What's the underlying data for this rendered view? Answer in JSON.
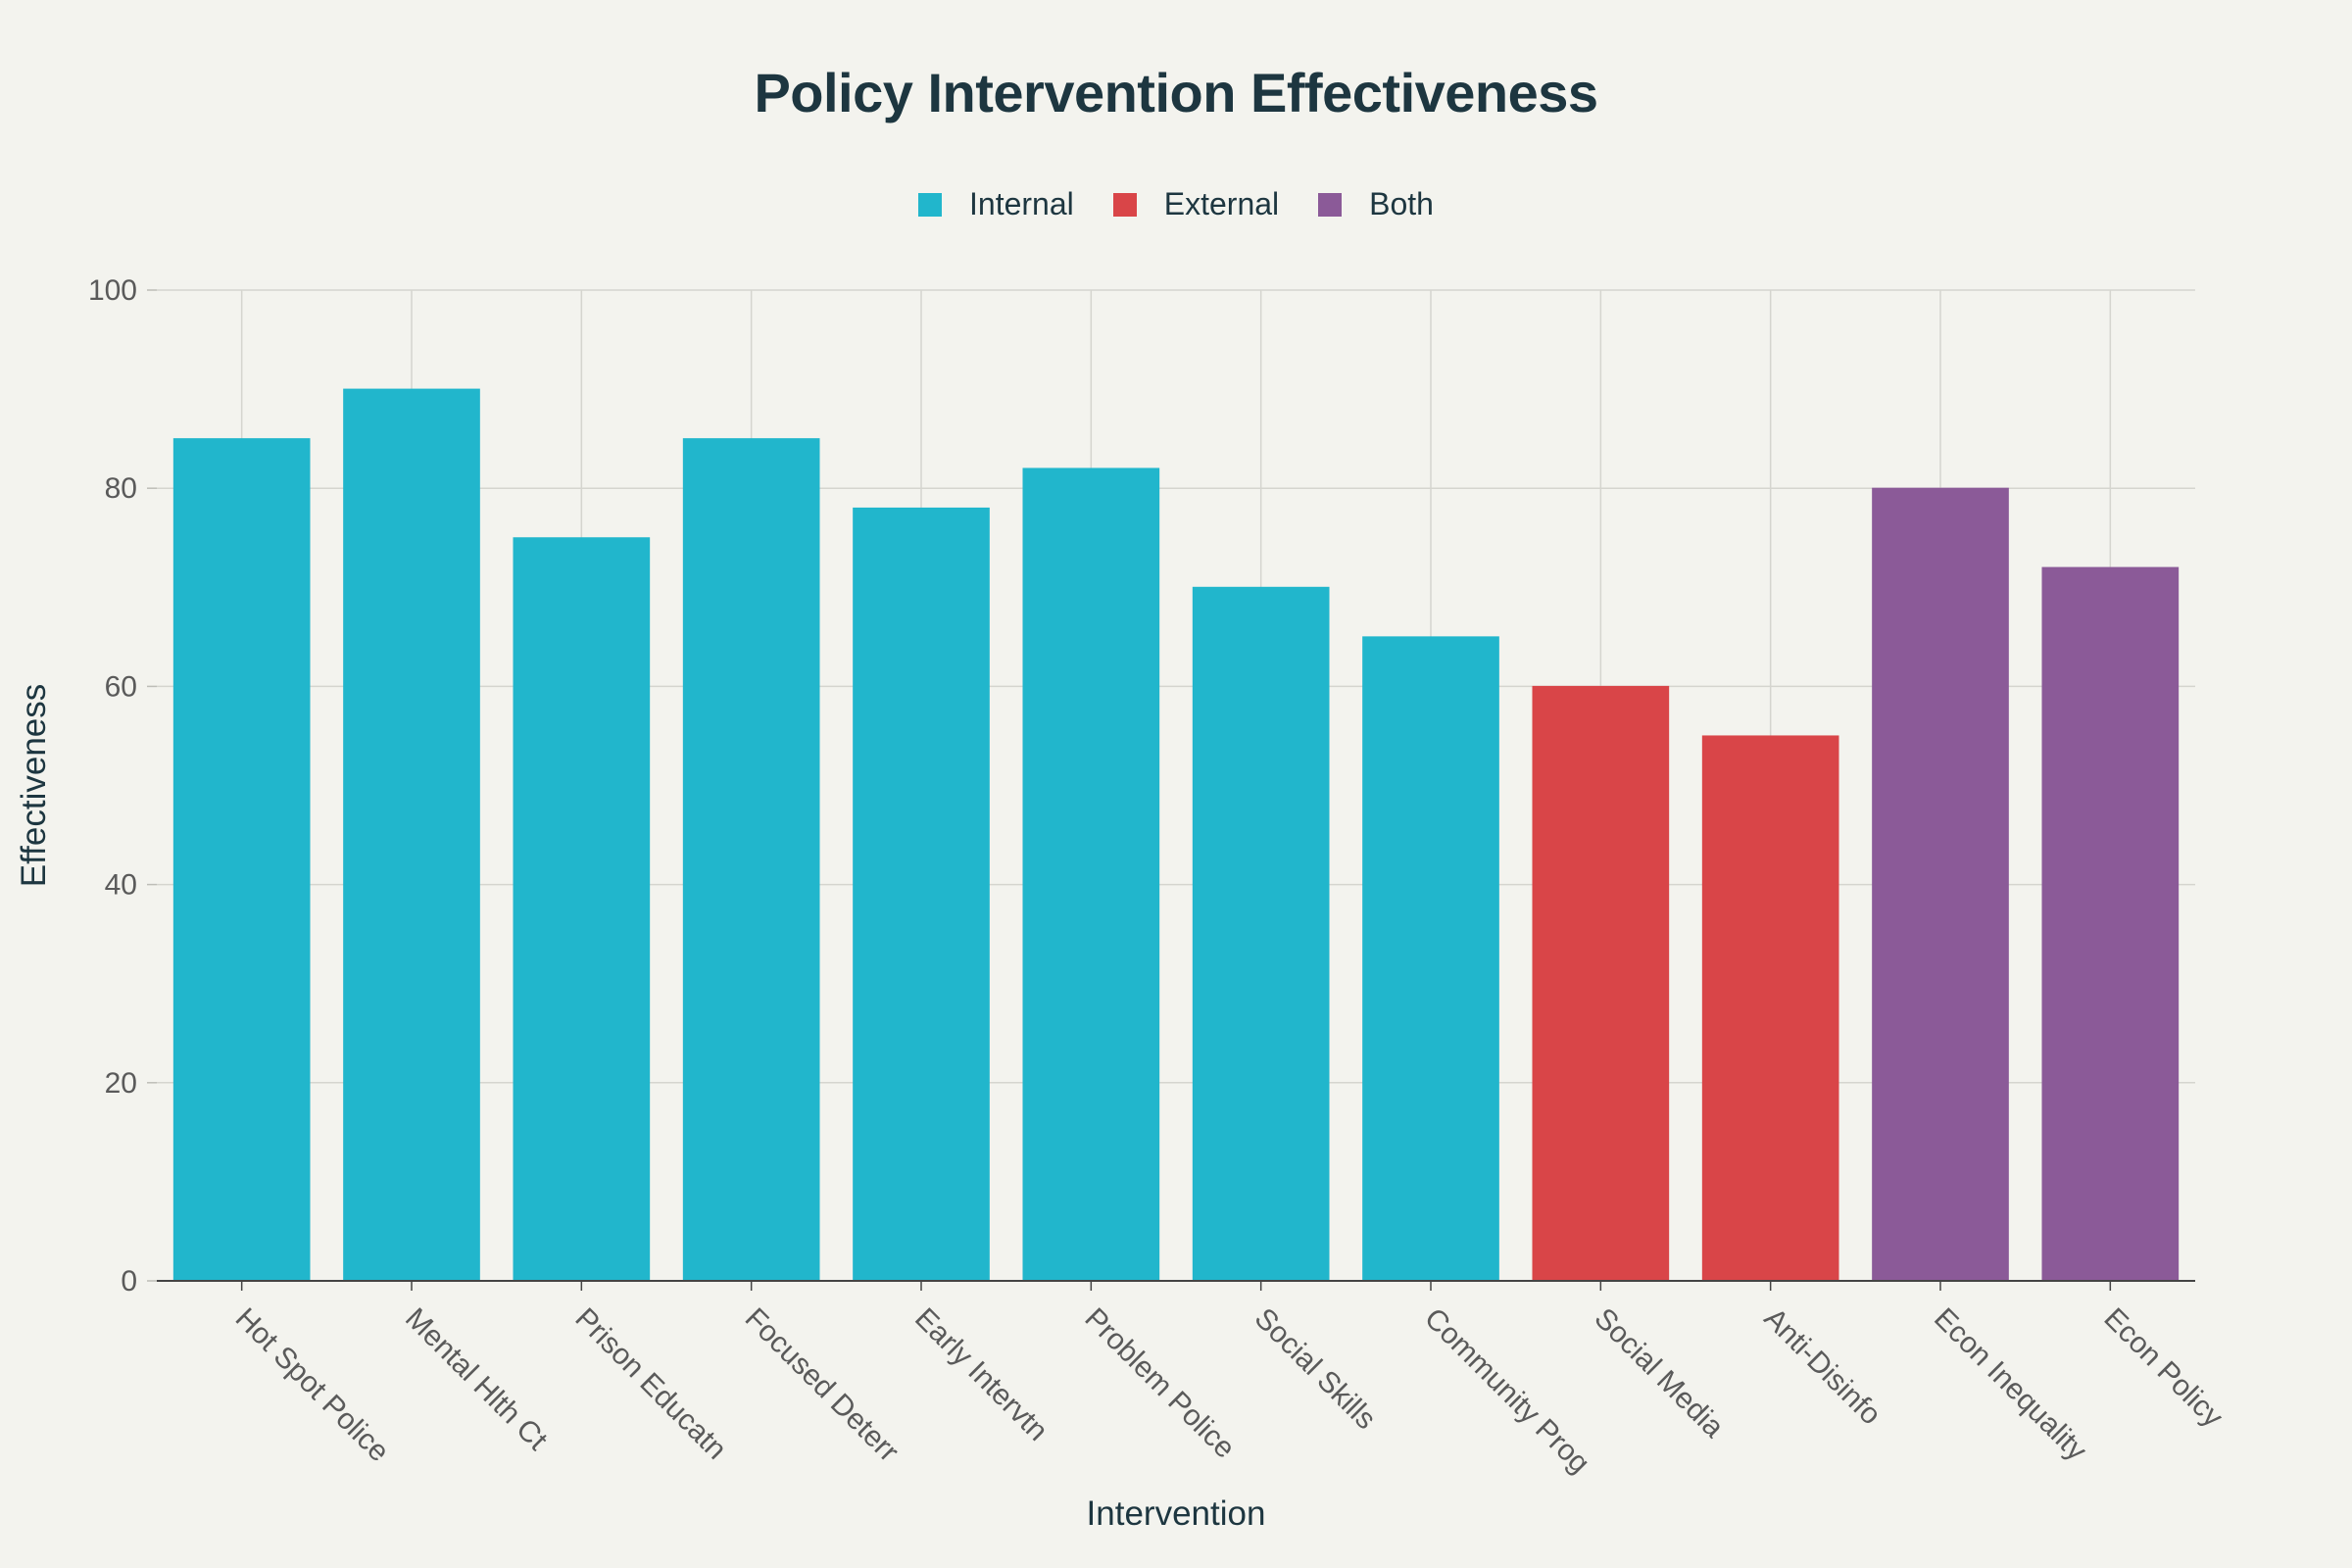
{
  "chart_data": {
    "type": "bar",
    "title": "Policy Intervention Effectiveness",
    "xlabel": "Intervention",
    "ylabel": "Effectiveness",
    "ylim": [
      0,
      100
    ],
    "yticks": [
      0,
      20,
      40,
      60,
      80,
      100
    ],
    "grid": true,
    "legend_position": "top-center",
    "legend": [
      {
        "name": "Internal",
        "color": "#21b6cc"
      },
      {
        "name": "External",
        "color": "#d94548"
      },
      {
        "name": "Both",
        "color": "#8b5a98"
      }
    ],
    "categories": [
      "Hot Spot Police",
      "Mental Hlth Ct",
      "Prison Educatn",
      "Focused Deterr",
      "Early Intervtn",
      "Problem Police",
      "Social Skills",
      "Community Prog",
      "Social Media",
      "Anti-Disinfo",
      "Econ Inequality",
      "Econ Policy"
    ],
    "values": [
      85,
      90,
      75,
      85,
      78,
      82,
      70,
      65,
      60,
      55,
      80,
      72
    ],
    "groups": [
      "Internal",
      "Internal",
      "Internal",
      "Internal",
      "Internal",
      "Internal",
      "Internal",
      "Internal",
      "External",
      "External",
      "Both",
      "Both"
    ]
  }
}
